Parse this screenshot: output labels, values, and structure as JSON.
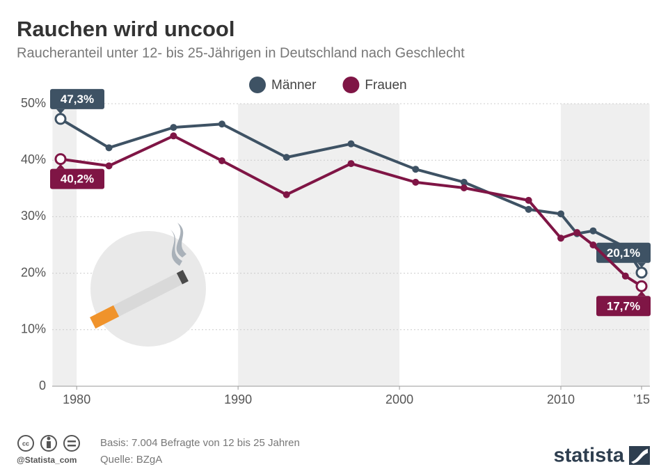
{
  "chart_data": {
    "type": "line",
    "title": "Rauchen wird uncool",
    "subtitle": "Raucheranteil unter 12- bis 25-Jährigen in Deutschland nach Geschlecht",
    "x": [
      1979,
      1982,
      1986,
      1989,
      1993,
      1997,
      2001,
      2004,
      2008,
      2010,
      2011,
      2012,
      2014,
      2015
    ],
    "series": [
      {
        "name": "Männer",
        "color": "#3e5264",
        "values": [
          47.3,
          42.2,
          45.8,
          46.4,
          40.5,
          42.9,
          38.4,
          36.1,
          31.3,
          30.5,
          27.0,
          27.5,
          24.6,
          20.1
        ],
        "value_labels": [
          "47,3%",
          null,
          null,
          null,
          null,
          null,
          null,
          null,
          null,
          null,
          null,
          null,
          null,
          "20,1%"
        ]
      },
      {
        "name": "Frauen",
        "color": "#7f1545",
        "values": [
          40.2,
          39.0,
          44.3,
          39.9,
          33.9,
          39.4,
          36.1,
          35.1,
          32.9,
          26.2,
          27.2,
          25.0,
          19.5,
          17.7
        ],
        "value_labels": [
          "40,2%",
          null,
          null,
          null,
          null,
          null,
          null,
          null,
          null,
          null,
          null,
          null,
          null,
          "17,7%"
        ]
      }
    ],
    "xlim": [
      1978.5,
      2015.5
    ],
    "xticks": [
      1980,
      1990,
      2000,
      2010,
      {
        "value": 2015,
        "label": "’15"
      }
    ],
    "ylim": [
      0,
      50
    ],
    "yticks": [
      0,
      {
        "value": 10,
        "label": "10%"
      },
      {
        "value": 20,
        "label": "20%"
      },
      {
        "value": 30,
        "label": "30%"
      },
      {
        "value": 40,
        "label": "40%"
      },
      {
        "value": 50,
        "label": "50%"
      }
    ],
    "grid": true,
    "legend": "top",
    "footer": {
      "basis": "Basis: 7.004 Befragte von 12 bis 25 Jahren",
      "source": "Quelle: BZgA",
      "handle": "@Statista_com",
      "brand": "statista"
    }
  }
}
